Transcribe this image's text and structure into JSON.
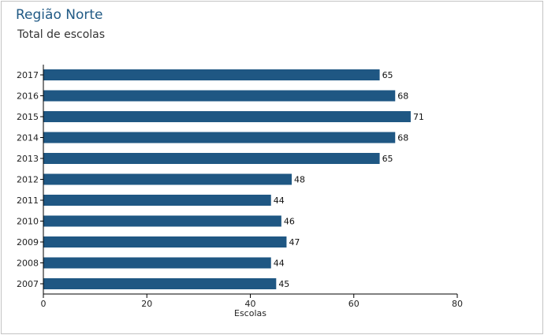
{
  "chart_data": {
    "type": "bar",
    "orientation": "horizontal",
    "title": "Região Norte",
    "subtitle": "Total de escolas",
    "categories": [
      "2017",
      "2016",
      "2015",
      "2014",
      "2013",
      "2012",
      "2011",
      "2010",
      "2009",
      "2008",
      "2007"
    ],
    "values": [
      65,
      68,
      71,
      68,
      65,
      48,
      44,
      46,
      47,
      44,
      45
    ],
    "xlabel": "Escolas",
    "ylabel": "",
    "xlim": [
      0,
      80
    ],
    "xticks": [
      0,
      20,
      40,
      60,
      80
    ],
    "grid": false,
    "data_labels": true,
    "colors": {
      "bar": "#1f5783",
      "title": "#215a85"
    }
  }
}
